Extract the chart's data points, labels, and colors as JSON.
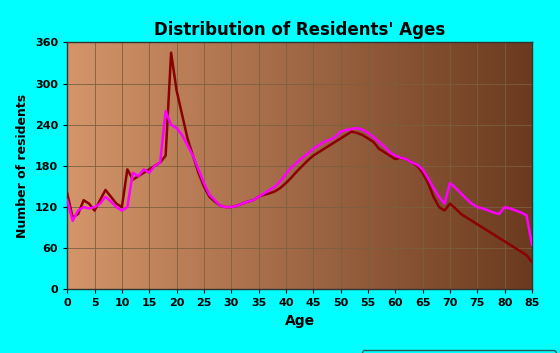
{
  "title": "Distribution of Residents' Ages",
  "xlabel": "Age",
  "ylabel": "Number of residents",
  "xlim": [
    0,
    85
  ],
  "ylim": [
    0,
    360
  ],
  "xticks": [
    0,
    5,
    10,
    15,
    20,
    25,
    30,
    35,
    40,
    45,
    50,
    55,
    60,
    65,
    70,
    75,
    80,
    85
  ],
  "yticks": [
    0,
    60,
    120,
    180,
    240,
    300,
    360
  ],
  "background_outer": "#00ffff",
  "grad_left": "#d4956a",
  "grad_right": "#6b3a1f",
  "male_color": "#8b0000",
  "female_color": "#ff00ff",
  "legend_facecolor": "#00ffff",
  "ages": [
    0,
    1,
    2,
    3,
    4,
    5,
    6,
    7,
    8,
    9,
    10,
    11,
    12,
    13,
    14,
    15,
    16,
    17,
    18,
    19,
    20,
    21,
    22,
    23,
    24,
    25,
    26,
    27,
    28,
    29,
    30,
    31,
    32,
    33,
    34,
    35,
    36,
    37,
    38,
    39,
    40,
    41,
    42,
    43,
    44,
    45,
    46,
    47,
    48,
    49,
    50,
    51,
    52,
    53,
    54,
    55,
    56,
    57,
    58,
    59,
    60,
    61,
    62,
    63,
    64,
    65,
    66,
    67,
    68,
    69,
    70,
    71,
    72,
    73,
    74,
    75,
    76,
    77,
    78,
    79,
    80,
    81,
    82,
    83,
    84,
    85
  ],
  "males": [
    140,
    105,
    110,
    130,
    125,
    115,
    130,
    145,
    135,
    125,
    120,
    175,
    160,
    165,
    170,
    175,
    180,
    185,
    195,
    345,
    290,
    255,
    220,
    195,
    170,
    150,
    135,
    128,
    122,
    120,
    120,
    122,
    125,
    128,
    130,
    135,
    138,
    140,
    143,
    148,
    155,
    163,
    172,
    180,
    188,
    195,
    200,
    205,
    210,
    215,
    220,
    225,
    230,
    228,
    225,
    220,
    215,
    205,
    200,
    195,
    190,
    192,
    190,
    185,
    180,
    170,
    155,
    135,
    120,
    115,
    125,
    118,
    110,
    105,
    100,
    95,
    90,
    85,
    80,
    75,
    70,
    65,
    60,
    55,
    50,
    40
  ],
  "females": [
    130,
    100,
    115,
    120,
    118,
    120,
    125,
    135,
    128,
    120,
    115,
    120,
    170,
    165,
    175,
    170,
    180,
    185,
    260,
    240,
    235,
    225,
    210,
    195,
    175,
    155,
    138,
    130,
    122,
    120,
    120,
    122,
    125,
    128,
    130,
    135,
    140,
    145,
    150,
    158,
    168,
    178,
    185,
    192,
    198,
    205,
    210,
    215,
    218,
    222,
    230,
    232,
    234,
    235,
    233,
    228,
    222,
    215,
    208,
    200,
    195,
    192,
    190,
    185,
    182,
    175,
    162,
    148,
    135,
    125,
    155,
    148,
    140,
    132,
    125,
    120,
    118,
    115,
    112,
    110,
    120,
    118,
    115,
    112,
    108,
    65
  ]
}
